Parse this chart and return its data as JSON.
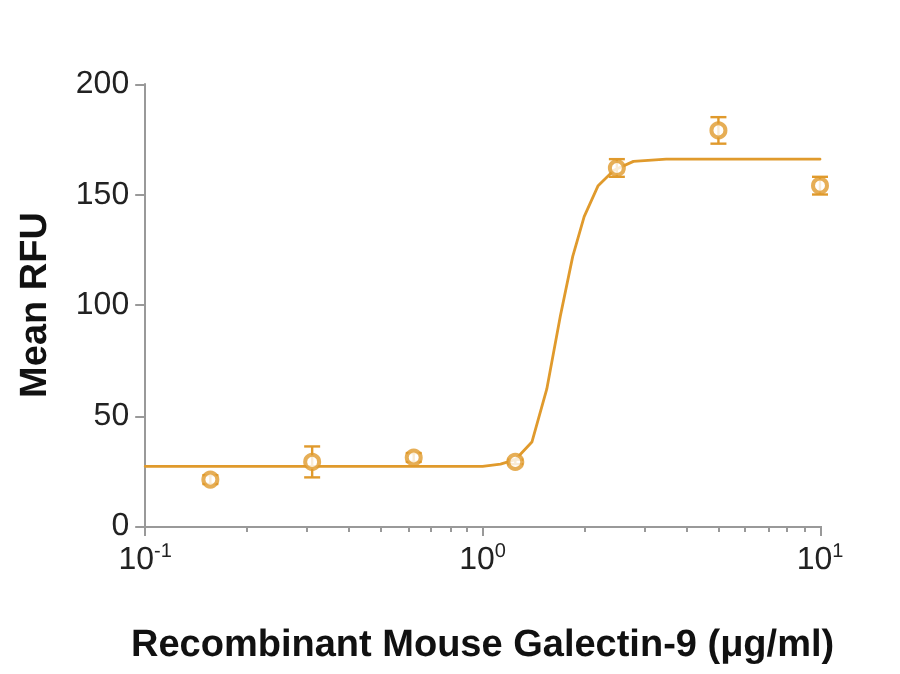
{
  "chart_data": {
    "type": "scatter",
    "xlabel": "Recombinant Mouse Galectin-9 (μg/ml)",
    "ylabel": "Mean RFU",
    "log": "x",
    "xlim": [
      0.1,
      10
    ],
    "xticks": [
      {
        "value": 0.1,
        "label": "10$^{-1}$"
      },
      {
        "value": 1,
        "label": "10$^{0}$"
      },
      {
        "value": 10,
        "label": "10$^{1}$"
      }
    ],
    "ylim": [
      0,
      200
    ],
    "yticks": [
      0,
      50,
      100,
      150,
      200
    ],
    "grid": false,
    "series": [
      {
        "color": "#e09a2c",
        "marker": "circle",
        "x": [
          0.156,
          0.3125,
          0.625,
          1.25,
          2.5,
          5,
          10
        ],
        "values": [
          21,
          29,
          31,
          29,
          162,
          179,
          154
        ],
        "errors": [
          2,
          7,
          2,
          1,
          4,
          6,
          4
        ]
      },
      {
        "type": "line",
        "color": "#e09a2c",
        "marker": "none",
        "x": [
          0.1,
          0.5,
          1.0,
          1.13,
          1.25,
          1.4,
          1.55,
          1.7,
          1.85,
          2.0,
          2.2,
          2.45,
          2.8,
          3.5,
          5,
          10
        ],
        "values": [
          27,
          27,
          27,
          28,
          30,
          38,
          62,
          95,
          122,
          140,
          154,
          161,
          165,
          166,
          166,
          166
        ]
      }
    ]
  }
}
